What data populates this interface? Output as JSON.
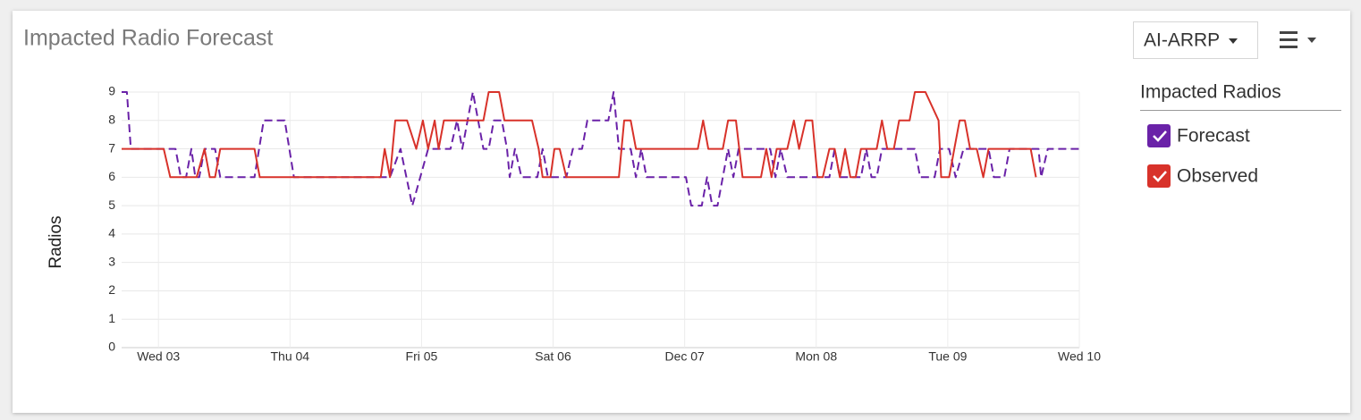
{
  "controls": {
    "dropdown": "AI-ARRP"
  },
  "chart_data": {
    "type": "line",
    "title": "Impacted Radio Forecast",
    "ylabel": "Radios",
    "legend_title": "Impacted Radios",
    "grid": true,
    "legend": "right",
    "xlim": [
      2.72,
      10
    ],
    "ylim": [
      0,
      9
    ],
    "xticks": [
      {
        "value": 3,
        "label": "Wed 03"
      },
      {
        "value": 4,
        "label": "Thu 04"
      },
      {
        "value": 5,
        "label": "Fri 05"
      },
      {
        "value": 6,
        "label": "Sat 06"
      },
      {
        "value": 7,
        "label": "Dec 07"
      },
      {
        "value": 8,
        "label": "Mon 08"
      },
      {
        "value": 9,
        "label": "Tue 09"
      },
      {
        "value": 10,
        "label": "Wed 10"
      }
    ],
    "yticks": [
      0,
      1,
      2,
      3,
      4,
      5,
      6,
      7,
      8,
      9
    ],
    "series": [
      {
        "name": "Forecast",
        "color": "#6a22a8",
        "dashed": true,
        "x": [
          2.72,
          2.76,
          2.79,
          3.09,
          3.13,
          3.17,
          3.21,
          3.25,
          3.28,
          3.31,
          3.35,
          3.43,
          3.47,
          3.73,
          3.8,
          3.96,
          4.03,
          4.76,
          4.84,
          4.93,
          5.05,
          5.22,
          5.27,
          5.31,
          5.35,
          5.39,
          5.43,
          5.47,
          5.51,
          5.55,
          5.61,
          5.65,
          5.67,
          5.71,
          5.76,
          5.88,
          5.92,
          5.96,
          6.1,
          6.15,
          6.22,
          6.26,
          6.42,
          6.46,
          6.5,
          6.59,
          6.63,
          6.67,
          6.71,
          7.01,
          7.05,
          7.13,
          7.17,
          7.21,
          7.25,
          7.29,
          7.33,
          7.37,
          7.41,
          7.65,
          7.69,
          7.73,
          7.78,
          8.1,
          8.14,
          8.18,
          8.34,
          8.38,
          8.42,
          8.46,
          8.5,
          8.75,
          8.79,
          8.9,
          8.94,
          9.01,
          9.06,
          9.12,
          9.31,
          9.35,
          9.43,
          9.47,
          9.63,
          9.69,
          9.71,
          9.76,
          10.0
        ],
        "values": [
          9,
          9,
          7,
          7,
          7,
          6,
          6,
          7,
          6,
          6,
          7,
          7,
          6,
          6,
          8,
          8,
          6,
          6,
          7,
          5,
          7,
          7,
          8,
          7,
          8,
          9,
          8,
          7,
          7,
          8,
          8,
          7,
          6,
          7,
          6,
          6,
          7,
          6,
          6,
          7,
          7,
          8,
          8,
          9,
          7,
          7,
          6,
          7,
          6,
          6,
          5,
          5,
          6,
          5,
          5,
          6,
          7,
          6,
          7,
          7,
          6,
          7,
          6,
          6,
          7,
          6,
          6,
          7,
          6,
          6,
          7,
          7,
          6,
          6,
          7,
          7,
          6,
          7,
          7,
          6,
          6,
          7,
          7,
          7,
          6,
          7,
          7
        ]
      },
      {
        "name": "Observed",
        "color": "#d8322a",
        "dashed": false,
        "x": [
          2.72,
          3.04,
          3.09,
          3.29,
          3.35,
          3.39,
          3.43,
          3.47,
          3.73,
          3.77,
          4.69,
          4.72,
          4.76,
          4.8,
          4.89,
          4.96,
          5.01,
          5.05,
          5.1,
          5.13,
          5.17,
          5.47,
          5.51,
          5.59,
          5.63,
          5.84,
          5.89,
          5.92,
          5.98,
          6.01,
          6.05,
          6.1,
          6.5,
          6.54,
          6.59,
          6.63,
          7.1,
          7.14,
          7.18,
          7.29,
          7.33,
          7.39,
          7.44,
          7.58,
          7.62,
          7.66,
          7.7,
          7.78,
          7.83,
          7.87,
          7.92,
          7.97,
          8.01,
          8.05,
          8.1,
          8.14,
          8.18,
          8.22,
          8.26,
          8.3,
          8.34,
          8.46,
          8.5,
          8.54,
          8.59,
          8.63,
          8.71,
          8.75,
          8.83,
          8.93,
          8.95,
          9.01,
          9.05,
          9.09,
          9.13,
          9.17,
          9.22,
          9.27,
          9.31,
          9.63,
          9.67
        ],
        "values": [
          7,
          7,
          6,
          6,
          7,
          6,
          6,
          7,
          7,
          6,
          6,
          7,
          6,
          8,
          8,
          7,
          8,
          7,
          8,
          7,
          8,
          8,
          9,
          9,
          8,
          8,
          7,
          6,
          6,
          7,
          7,
          6,
          6,
          8,
          8,
          7,
          7,
          8,
          7,
          7,
          8,
          8,
          6,
          6,
          7,
          6,
          7,
          7,
          8,
          7,
          8,
          8,
          6,
          6,
          7,
          7,
          6,
          7,
          6,
          6,
          7,
          7,
          8,
          7,
          7,
          8,
          8,
          9,
          9,
          8,
          6,
          6,
          7,
          8,
          8,
          7,
          7,
          6,
          7,
          7,
          6
        ]
      }
    ]
  }
}
